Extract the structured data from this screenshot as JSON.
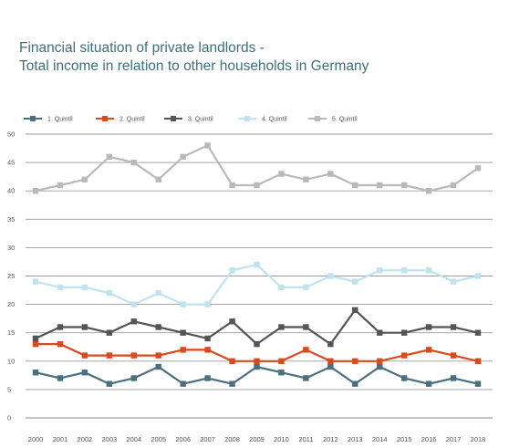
{
  "chart_data": {
    "type": "line",
    "title_lines": [
      "Financial situation of private landlords -",
      "Total income in relation to other households in Germany"
    ],
    "x": [
      "2000",
      "2001",
      "2002",
      "2003",
      "2004",
      "2005",
      "2006",
      "2007",
      "2008",
      "2009",
      "2010",
      "2011",
      "2012",
      "2013",
      "2014",
      "2015",
      "2016",
      "2017",
      "2018"
    ],
    "ylim": [
      0,
      50
    ],
    "yticks": [
      "0",
      "5",
      "10",
      "15",
      "20",
      "25",
      "30",
      "35",
      "40",
      "45",
      "50"
    ],
    "grid": true,
    "legend_position": "top",
    "series": [
      {
        "name": "1. Quintil",
        "color": "#4a7080",
        "values": [
          8,
          7,
          8,
          6,
          7,
          9,
          6,
          7,
          6,
          9,
          8,
          7,
          9,
          6,
          9,
          7,
          6,
          7,
          6
        ]
      },
      {
        "name": "2. Quintil",
        "color": "#d94a1e",
        "values": [
          13,
          13,
          11,
          11,
          11,
          11,
          12,
          12,
          10,
          10,
          10,
          12,
          10,
          10,
          10,
          11,
          12,
          11,
          10
        ]
      },
      {
        "name": "3. Quintil",
        "color": "#555555",
        "values": [
          14,
          16,
          16,
          15,
          17,
          16,
          15,
          14,
          17,
          13,
          16,
          16,
          13,
          19,
          15,
          15,
          16,
          16,
          15
        ]
      },
      {
        "name": "4. Quintil",
        "color": "#bfe3ef",
        "values": [
          24,
          23,
          23,
          22,
          20,
          22,
          20,
          20,
          26,
          27,
          23,
          23,
          25,
          24,
          26,
          26,
          26,
          24,
          25
        ]
      },
      {
        "name": "5. Quintil",
        "color": "#b9b9b9",
        "values": [
          40,
          41,
          42,
          46,
          45,
          42,
          46,
          48,
          41,
          41,
          43,
          42,
          43,
          41,
          41,
          41,
          40,
          41,
          44
        ]
      }
    ]
  }
}
